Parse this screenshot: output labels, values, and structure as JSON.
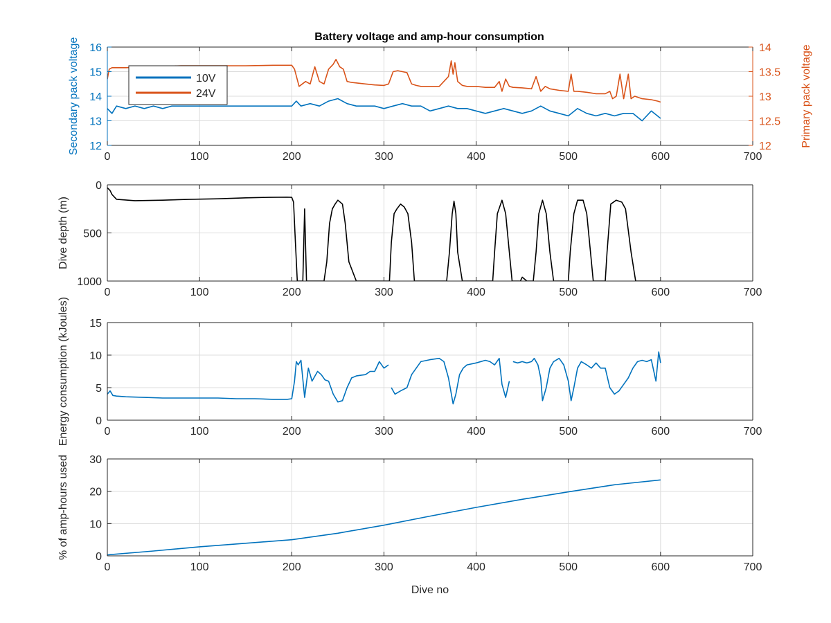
{
  "figure": {
    "title": "Battery voltage and amp-hour consumption"
  },
  "colors": {
    "blue": "#0072BD",
    "orange": "#D95319",
    "black": "#000000",
    "axis": "#262626"
  },
  "chart_data": [
    {
      "type": "line",
      "title": "Battery voltage and amp-hour consumption",
      "xlim": [
        0,
        700
      ],
      "x_ticks": [
        0,
        100,
        200,
        300,
        400,
        500,
        600,
        700
      ],
      "ylabel": "Secondary pack voltage",
      "ylim": [
        12,
        16
      ],
      "y_ticks": [
        12,
        13,
        14,
        15,
        16
      ],
      "ylabel_right": "Primary pack voltage",
      "ylim_right": [
        12,
        14
      ],
      "y_ticks_right": [
        12,
        12.5,
        13,
        13.5,
        14
      ],
      "grid": true,
      "legend": {
        "position": "top-left",
        "entries": [
          "10V",
          "24V"
        ]
      },
      "series": [
        {
          "name": "10V",
          "axis": "left",
          "color": "#0072BD",
          "x": [
            0,
            5,
            10,
            20,
            30,
            40,
            50,
            60,
            70,
            80,
            90,
            100,
            110,
            120,
            130,
            140,
            150,
            160,
            170,
            180,
            190,
            200,
            205,
            210,
            220,
            230,
            240,
            250,
            260,
            270,
            280,
            290,
            300,
            310,
            320,
            330,
            340,
            350,
            360,
            370,
            380,
            390,
            400,
            410,
            420,
            430,
            440,
            450,
            460,
            470,
            480,
            490,
            500,
            510,
            520,
            530,
            540,
            550,
            560,
            570,
            580,
            590,
            600
          ],
          "y": [
            13.5,
            13.3,
            13.6,
            13.5,
            13.6,
            13.5,
            13.6,
            13.5,
            13.6,
            13.6,
            13.6,
            13.6,
            13.6,
            13.6,
            13.6,
            13.6,
            13.6,
            13.6,
            13.6,
            13.6,
            13.6,
            13.6,
            13.8,
            13.6,
            13.7,
            13.6,
            13.8,
            13.9,
            13.7,
            13.6,
            13.6,
            13.6,
            13.5,
            13.6,
            13.7,
            13.6,
            13.6,
            13.4,
            13.5,
            13.6,
            13.5,
            13.5,
            13.4,
            13.3,
            13.4,
            13.5,
            13.4,
            13.3,
            13.4,
            13.6,
            13.4,
            13.3,
            13.2,
            13.5,
            13.3,
            13.2,
            13.3,
            13.2,
            13.3,
            13.3,
            13.0,
            13.4,
            13.1
          ]
        },
        {
          "name": "24V",
          "axis": "right",
          "color": "#D95319",
          "x": [
            0,
            2,
            5,
            20,
            50,
            80,
            100,
            130,
            150,
            180,
            200,
            203,
            208,
            215,
            220,
            225,
            230,
            235,
            240,
            245,
            248,
            252,
            256,
            260,
            265,
            270,
            280,
            290,
            300,
            305,
            310,
            315,
            320,
            325,
            330,
            335,
            340,
            350,
            360,
            370,
            373,
            375,
            377,
            380,
            385,
            390,
            400,
            410,
            420,
            425,
            428,
            432,
            436,
            440,
            450,
            460,
            465,
            470,
            475,
            480,
            490,
            500,
            503,
            506,
            510,
            520,
            530,
            540,
            545,
            548,
            552,
            556,
            560,
            565,
            568,
            572,
            580,
            590,
            597,
            600
          ],
          "y": [
            13.35,
            13.55,
            13.58,
            13.58,
            13.6,
            13.62,
            13.62,
            13.62,
            13.62,
            13.63,
            13.63,
            13.55,
            13.2,
            13.3,
            13.25,
            13.6,
            13.3,
            13.25,
            13.55,
            13.65,
            13.75,
            13.6,
            13.55,
            13.3,
            13.28,
            13.27,
            13.25,
            13.23,
            13.22,
            13.25,
            13.5,
            13.52,
            13.5,
            13.48,
            13.25,
            13.22,
            13.2,
            13.2,
            13.2,
            13.4,
            13.72,
            13.45,
            13.68,
            13.3,
            13.22,
            13.2,
            13.2,
            13.18,
            13.18,
            13.3,
            13.1,
            13.35,
            13.2,
            13.18,
            13.17,
            13.15,
            13.4,
            13.1,
            13.2,
            13.15,
            13.12,
            13.1,
            13.45,
            13.1,
            13.1,
            13.08,
            13.05,
            13.05,
            13.1,
            12.95,
            13.0,
            13.45,
            12.95,
            13.45,
            12.95,
            13.0,
            12.95,
            12.93,
            12.9,
            12.88
          ]
        }
      ]
    },
    {
      "type": "line",
      "xlim": [
        0,
        700
      ],
      "x_ticks": [
        0,
        100,
        200,
        300,
        400,
        500,
        600,
        700
      ],
      "ylabel": "Dive depth (m)",
      "ylim": [
        0,
        1000
      ],
      "y_reversed": true,
      "y_ticks": [
        0,
        500,
        1000
      ],
      "grid": true,
      "series": [
        {
          "color": "#000000",
          "x": [
            0,
            3,
            5,
            10,
            30,
            60,
            90,
            120,
            150,
            175,
            195,
            200,
            202,
            204,
            206,
            208,
            212,
            214,
            216,
            218,
            220,
            225,
            235,
            238,
            241,
            244,
            247,
            250,
            255,
            258,
            262,
            270,
            290,
            300,
            306,
            308,
            311,
            314,
            318,
            322,
            326,
            330,
            333,
            340,
            360,
            368,
            371,
            374,
            376,
            378,
            380,
            385,
            390,
            410,
            418,
            420,
            423,
            428,
            432,
            436,
            439,
            442,
            448,
            450,
            455,
            462,
            465,
            468,
            472,
            476,
            480,
            484,
            487,
            490,
            500,
            502,
            506,
            510,
            516,
            520,
            524,
            527,
            530,
            540,
            542,
            546,
            552,
            558,
            562,
            568,
            573,
            580,
            590,
            600
          ],
          "y": [
            30,
            60,
            100,
            150,
            165,
            160,
            150,
            145,
            135,
            130,
            128,
            130,
            180,
            600,
            1000,
            1000,
            1000,
            250,
            1000,
            1000,
            1000,
            1000,
            1000,
            800,
            400,
            250,
            200,
            160,
            200,
            400,
            800,
            1000,
            1000,
            1000,
            1000,
            600,
            300,
            250,
            200,
            230,
            300,
            600,
            1000,
            1000,
            1000,
            1000,
            700,
            300,
            170,
            300,
            700,
            1000,
            1000,
            1000,
            1000,
            700,
            300,
            160,
            300,
            700,
            1000,
            1000,
            1000,
            960,
            1000,
            1000,
            700,
            300,
            160,
            300,
            700,
            1000,
            1000,
            1000,
            1000,
            700,
            300,
            160,
            160,
            300,
            700,
            1000,
            1000,
            1000,
            700,
            200,
            160,
            180,
            250,
            700,
            1000,
            1000,
            1000,
            1000
          ]
        }
      ]
    },
    {
      "type": "line",
      "xlim": [
        0,
        700
      ],
      "x_ticks": [
        0,
        100,
        200,
        300,
        400,
        500,
        600,
        700
      ],
      "ylabel": "Energy consumption (kJoules)",
      "ylim": [
        0,
        15
      ],
      "y_ticks": [
        0,
        5,
        10,
        15
      ],
      "grid": true,
      "series": [
        {
          "color": "#0072BD",
          "segments": [
            {
              "x": [
                0,
                3,
                6,
                10,
                20,
                40,
                60,
                80,
                100,
                120,
                140,
                160,
                180,
                195,
                200,
                203,
                205,
                207,
                210,
                214,
                218,
                222,
                228,
                232,
                236,
                240,
                245,
                250,
                255,
                260,
                265,
                270,
                275,
                280,
                285,
                290,
                295,
                300,
                305
              ],
              "y": [
                4.0,
                4.5,
                3.8,
                3.7,
                3.6,
                3.5,
                3.4,
                3.4,
                3.4,
                3.4,
                3.3,
                3.3,
                3.2,
                3.2,
                3.3,
                6.0,
                9.0,
                8.5,
                9.2,
                3.5,
                8.0,
                6.0,
                7.5,
                7.0,
                6.2,
                6.0,
                4.0,
                2.8,
                3.0,
                5.0,
                6.5,
                6.8,
                6.9,
                7.0,
                7.5,
                7.5,
                9.0,
                8.0,
                8.5
              ]
            },
            {
              "x": [
                308,
                312,
                318,
                325,
                330,
                340,
                350,
                360,
                365,
                370,
                375,
                378,
                382,
                386,
                390,
                400,
                410,
                415,
                420,
                425,
                428,
                432,
                436
              ],
              "y": [
                5.0,
                4.0,
                4.5,
                5.0,
                7.0,
                9.0,
                9.3,
                9.5,
                9.0,
                6.5,
                2.5,
                4.0,
                7.0,
                8.0,
                8.5,
                8.8,
                9.2,
                9.0,
                8.5,
                9.5,
                5.5,
                3.5,
                6.0
              ]
            },
            {
              "x": [
                440,
                445,
                450,
                455,
                460,
                463,
                467,
                470,
                472,
                476,
                480,
                484,
                490,
                495,
                500,
                503,
                506,
                510,
                514,
                520,
                525,
                530,
                535,
                540,
                545,
                550,
                555,
                560,
                565,
                570,
                575,
                580,
                585,
                590,
                595,
                598,
                600
              ],
              "y": [
                9.0,
                8.8,
                9.0,
                8.8,
                9.0,
                9.5,
                8.5,
                6.5,
                3.0,
                5.0,
                8.0,
                9.0,
                9.5,
                8.5,
                6.0,
                3.0,
                5.0,
                8.0,
                9.0,
                8.5,
                8.0,
                8.8,
                8.0,
                8.0,
                5.0,
                4.0,
                4.5,
                5.5,
                6.5,
                8.0,
                9.0,
                9.2,
                9.0,
                9.3,
                6.0,
                10.5,
                8.8
              ]
            }
          ]
        }
      ]
    },
    {
      "type": "line",
      "xlim": [
        0,
        700
      ],
      "x_ticks": [
        0,
        100,
        200,
        300,
        400,
        500,
        600,
        700
      ],
      "ylabel": "% of amp-hours used",
      "xlabel": "Dive no",
      "ylim": [
        0,
        30
      ],
      "y_ticks": [
        0,
        10,
        20,
        30
      ],
      "grid": true,
      "series": [
        {
          "color": "#0072BD",
          "x": [
            0,
            50,
            100,
            150,
            200,
            250,
            300,
            350,
            400,
            450,
            500,
            550,
            600
          ],
          "y": [
            0.3,
            1.5,
            2.8,
            3.9,
            5.0,
            7.0,
            9.5,
            12.3,
            15.0,
            17.5,
            19.8,
            22.0,
            23.5
          ]
        }
      ]
    }
  ]
}
